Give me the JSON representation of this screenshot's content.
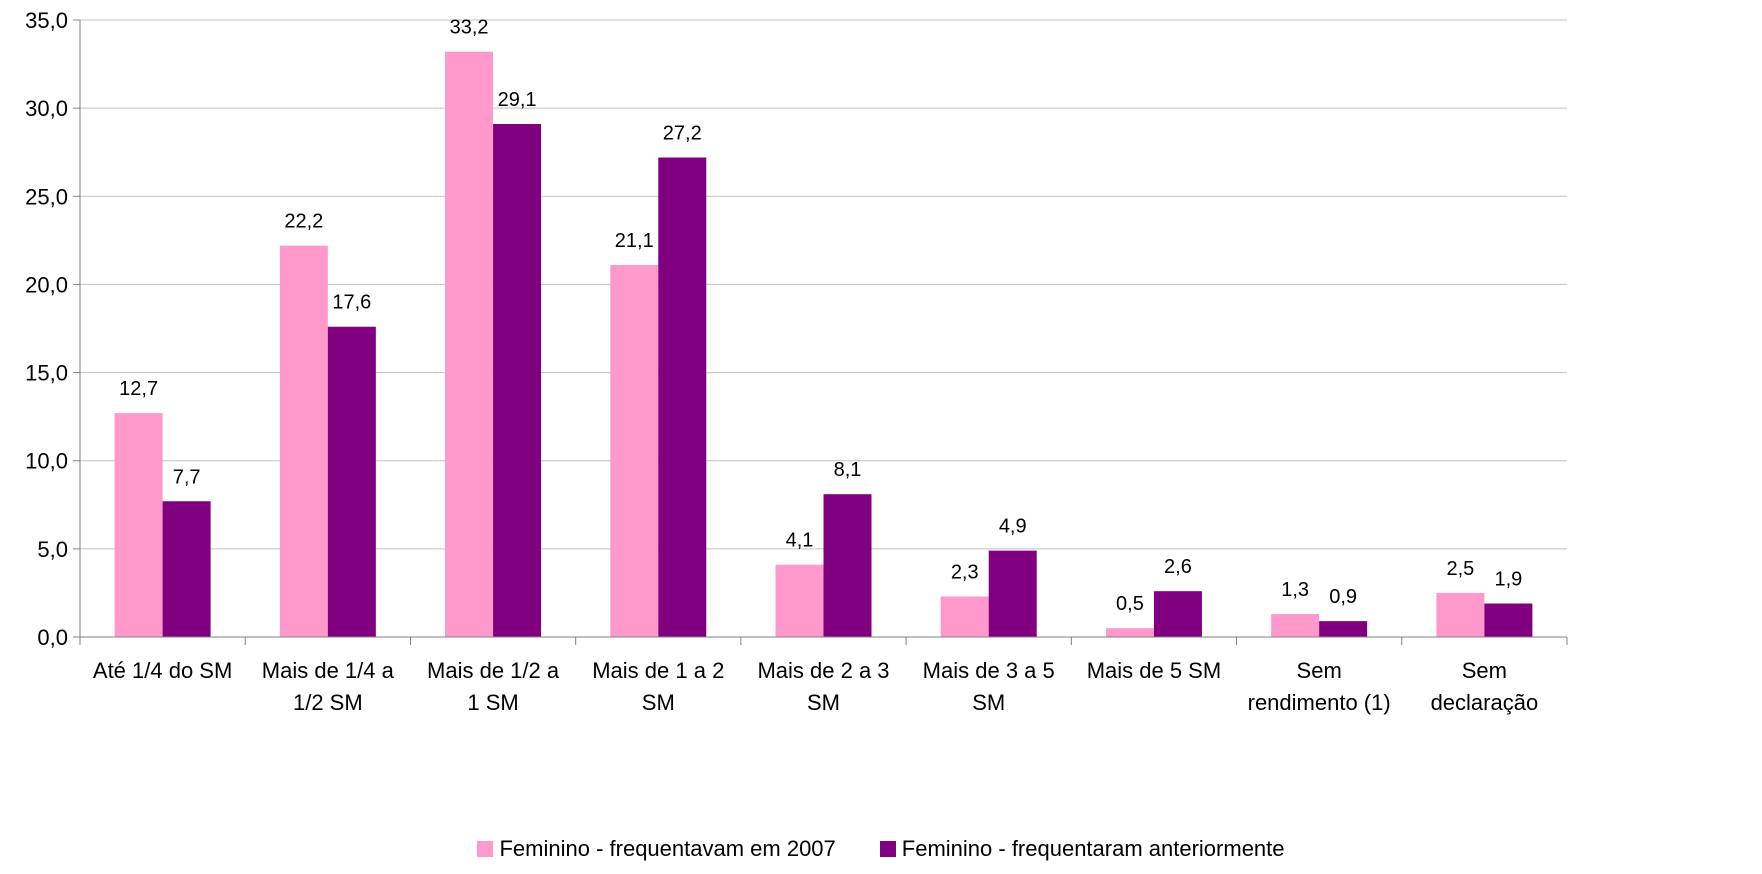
{
  "chart_data": {
    "type": "bar",
    "categories": [
      [
        "Até 1/4 do SM"
      ],
      [
        "Mais de 1/4 a",
        "1/2 SM"
      ],
      [
        "Mais de 1/2 a",
        "1 SM"
      ],
      [
        "Mais de 1 a 2",
        "SM"
      ],
      [
        "Mais de 2 a 3",
        "SM"
      ],
      [
        "Mais de 3 a 5",
        "SM"
      ],
      [
        "Mais de 5 SM"
      ],
      [
        "Sem",
        "rendimento (1)"
      ],
      [
        "Sem",
        "declaração"
      ]
    ],
    "series": [
      {
        "name": "Feminino - frequentavam em 2007",
        "color": "#FF99CC",
        "values": [
          12.7,
          22.2,
          33.2,
          21.1,
          4.1,
          2.3,
          0.5,
          1.3,
          2.5
        ],
        "labels": [
          "12,7",
          "22,2",
          "33,2",
          "21,1",
          "4,1",
          "2,3",
          "0,5",
          "1,3",
          "2,5"
        ]
      },
      {
        "name": "Feminino - frequentaram anteriormente",
        "color": "#800080",
        "values": [
          7.7,
          17.6,
          29.1,
          27.2,
          8.1,
          4.9,
          2.6,
          0.9,
          1.9
        ],
        "labels": [
          "7,7",
          "17,6",
          "29,1",
          "27,2",
          "8,1",
          "4,9",
          "2,6",
          "0,9",
          "1,9"
        ]
      }
    ],
    "ylim": [
      0,
      35
    ],
    "yticks": [
      0,
      5,
      10,
      15,
      20,
      25,
      30,
      35
    ],
    "ytick_labels": [
      "0,0",
      "5,0",
      "10,0",
      "15,0",
      "20,0",
      "25,0",
      "30,0",
      "35,0"
    ],
    "grid": true,
    "legend_position": "bottom",
    "gridline_color": "#C0C0C0",
    "axis_color": "#808080"
  }
}
